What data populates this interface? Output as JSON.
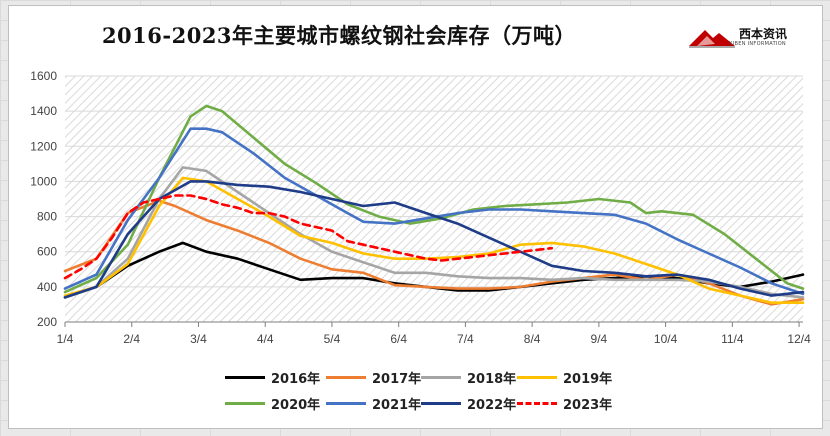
{
  "title": "2016-2023年主要城市螺纹钢社会库存（万吨）",
  "brand": {
    "name": "西本资讯",
    "sub": "XIBEN INFORMATION",
    "logo_icon": "mountain-logo-icon"
  },
  "chart_data": {
    "type": "line",
    "title": "2016-2023年主要城市螺纹钢社会库存（万吨）",
    "xlabel": "",
    "ylabel": "",
    "ylim": [
      200,
      1600
    ],
    "yticks": [
      200,
      400,
      600,
      800,
      1000,
      1200,
      1400,
      1600
    ],
    "xticks": [
      "1/4",
      "2/4",
      "3/4",
      "4/4",
      "5/4",
      "6/4",
      "7/4",
      "8/4",
      "9/4",
      "10/4",
      "11/4",
      "12/4"
    ],
    "x_unit": "week",
    "xlim": [
      1,
      48
    ],
    "grid": true,
    "background_pattern": "diagonal-hatch",
    "legend_position": "bottom",
    "series": [
      {
        "name": "2016年",
        "color": "#000000",
        "dashed": false,
        "x": [
          1,
          3,
          5,
          7,
          8.5,
          10,
          12,
          14,
          16,
          18,
          20,
          22,
          24,
          26,
          28,
          30,
          32,
          34,
          36,
          38,
          40,
          42,
          44,
          46,
          48
        ],
        "values": [
          340,
          400,
          520,
          600,
          650,
          600,
          560,
          500,
          440,
          450,
          450,
          420,
          400,
          380,
          380,
          400,
          420,
          440,
          450,
          460,
          450,
          420,
          400,
          430,
          470
        ]
      },
      {
        "name": "2017年",
        "color": "#ed7d31",
        "dashed": false,
        "x": [
          1,
          3,
          5,
          7,
          8,
          10,
          12,
          14,
          16,
          18,
          20,
          22,
          24,
          26,
          28,
          30,
          32,
          34,
          36,
          38,
          40,
          42,
          44,
          46,
          48
        ],
        "values": [
          490,
          560,
          820,
          890,
          860,
          780,
          720,
          650,
          560,
          500,
          480,
          410,
          400,
          390,
          390,
          400,
          430,
          450,
          470,
          440,
          470,
          420,
          350,
          300,
          330
        ]
      },
      {
        "name": "2018年",
        "color": "#a5a5a5",
        "dashed": false,
        "x": [
          1,
          3,
          5,
          7,
          8.5,
          10,
          12,
          14,
          16,
          18,
          20,
          22,
          24,
          26,
          28,
          30,
          32,
          34,
          36,
          38,
          40,
          42,
          44,
          46,
          48
        ],
        "values": [
          340,
          400,
          560,
          900,
          1080,
          1060,
          940,
          820,
          700,
          600,
          540,
          480,
          480,
          460,
          450,
          450,
          440,
          450,
          440,
          440,
          440,
          430,
          400,
          360,
          340
        ]
      },
      {
        "name": "2019年",
        "color": "#ffc000",
        "dashed": false,
        "x": [
          1,
          3,
          5,
          7,
          8.5,
          10,
          12,
          14,
          16,
          18,
          20,
          22,
          24,
          26,
          28,
          30,
          32,
          34,
          36,
          38,
          40,
          42,
          44,
          46,
          48
        ],
        "values": [
          350,
          400,
          530,
          860,
          1020,
          1000,
          900,
          800,
          690,
          650,
          590,
          560,
          560,
          570,
          590,
          640,
          650,
          630,
          590,
          530,
          470,
          390,
          350,
          310,
          310
        ]
      },
      {
        "name": "2020年",
        "color": "#70ad47",
        "dashed": false,
        "x": [
          1,
          3,
          5,
          7,
          9,
          10,
          11,
          13,
          15,
          17,
          19,
          21,
          23,
          25,
          27,
          29,
          31,
          33,
          35,
          37,
          38,
          39,
          41,
          43,
          45,
          47,
          48
        ],
        "values": [
          370,
          450,
          640,
          1020,
          1370,
          1430,
          1400,
          1250,
          1100,
          990,
          870,
          800,
          760,
          790,
          840,
          860,
          870,
          880,
          900,
          880,
          820,
          830,
          810,
          700,
          560,
          420,
          390
        ]
      },
      {
        "name": "2021年",
        "color": "#4472c4",
        "dashed": false,
        "x": [
          1,
          3,
          5,
          7,
          9,
          10,
          11,
          13,
          15,
          17,
          19,
          20,
          22,
          24,
          26,
          28,
          30,
          32,
          34,
          36,
          38,
          40,
          42,
          44,
          46,
          48
        ],
        "values": [
          390,
          470,
          780,
          1020,
          1300,
          1300,
          1280,
          1160,
          1020,
          920,
          820,
          770,
          760,
          790,
          820,
          840,
          840,
          830,
          820,
          810,
          760,
          670,
          590,
          510,
          420,
          360
        ]
      },
      {
        "name": "2022年",
        "color": "#1f3c88",
        "dashed": false,
        "x": [
          1,
          3,
          5,
          7,
          9,
          10,
          12,
          14,
          16,
          18,
          20,
          22,
          24,
          26,
          28,
          30,
          32,
          34,
          36,
          38,
          40,
          42,
          44,
          46,
          48
        ],
        "values": [
          340,
          400,
          700,
          900,
          1000,
          1000,
          980,
          970,
          940,
          900,
          860,
          880,
          820,
          760,
          680,
          600,
          520,
          490,
          480,
          460,
          470,
          440,
          390,
          350,
          370
        ]
      },
      {
        "name": "2023年",
        "color": "#ff0000",
        "dashed": true,
        "x": [
          1,
          2,
          3,
          4,
          5,
          6,
          7,
          8,
          9,
          10,
          11,
          12,
          13,
          14,
          15,
          16,
          17,
          18,
          19,
          20,
          21,
          22,
          23,
          24,
          25,
          26,
          27,
          28,
          29,
          30,
          31,
          32
        ],
        "values": [
          450,
          500,
          560,
          680,
          820,
          880,
          900,
          920,
          920,
          900,
          870,
          850,
          820,
          820,
          800,
          760,
          740,
          720,
          660,
          640,
          620,
          600,
          580,
          560,
          550,
          560,
          570,
          580,
          590,
          600,
          610,
          620
        ]
      }
    ]
  }
}
